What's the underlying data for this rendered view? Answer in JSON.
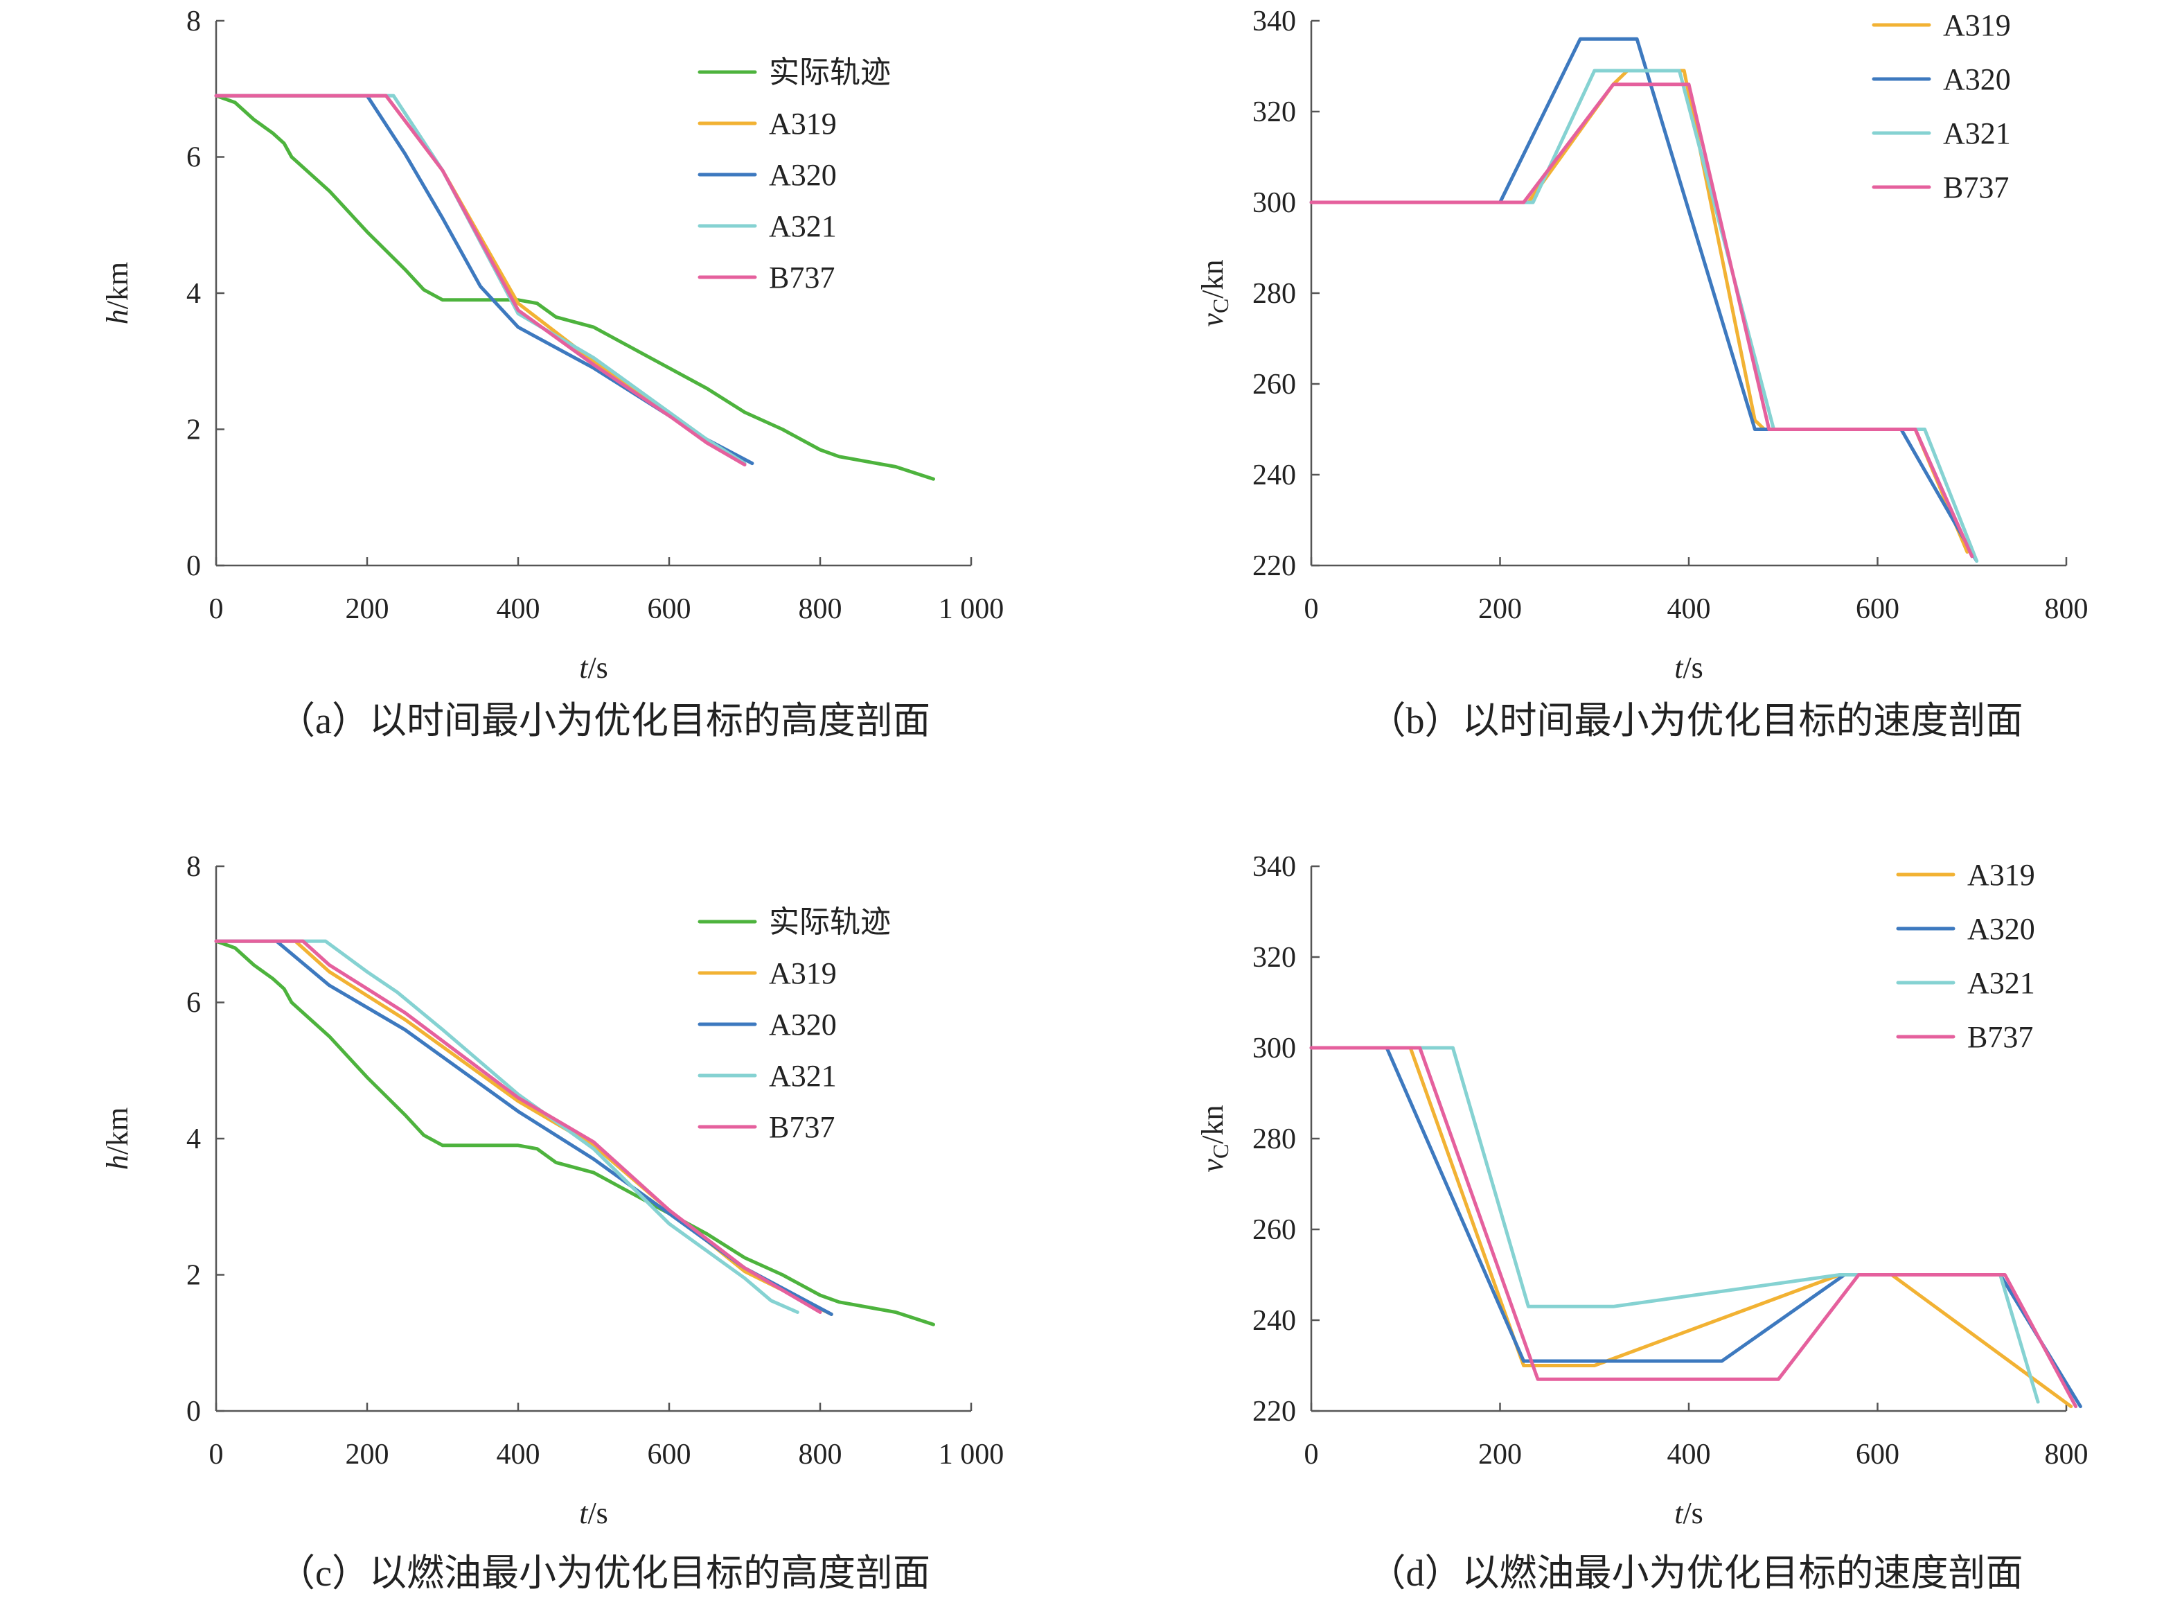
{
  "colors": {
    "实际轨迹": "#4db33d",
    "A319": "#f2b233",
    "A320": "#3d79bf",
    "A321": "#85d2d2",
    "B737": "#e5609d"
  },
  "chart_data": [
    {
      "id": "a",
      "type": "line",
      "caption": "（a）以时间最小为优化目标的高度剖面",
      "xlabel": {
        "var": "t",
        "unit": "/s"
      },
      "ylabel": {
        "var": "h",
        "unit": "/km"
      },
      "xlim": [
        0,
        1000
      ],
      "ylim": [
        0,
        8
      ],
      "xticks": [
        0,
        200,
        400,
        600,
        800,
        1000
      ],
      "xtick_labels": [
        "0",
        "200",
        "400",
        "600",
        "800",
        "1 000"
      ],
      "yticks": [
        0,
        2,
        4,
        6,
        8
      ],
      "ytick_labels": [
        "0",
        "2",
        "4",
        "6",
        "8"
      ],
      "legend": [
        "实际轨迹",
        "A319",
        "A320",
        "A321",
        "B737"
      ],
      "legend_position": "top-right",
      "series": [
        {
          "name": "实际轨迹",
          "points": [
            [
              0,
              6.9
            ],
            [
              25,
              6.8
            ],
            [
              50,
              6.55
            ],
            [
              75,
              6.35
            ],
            [
              90,
              6.2
            ],
            [
              100,
              6.0
            ],
            [
              150,
              5.5
            ],
            [
              200,
              4.9
            ],
            [
              250,
              4.35
            ],
            [
              275,
              4.05
            ],
            [
              300,
              3.9
            ],
            [
              400,
              3.9
            ],
            [
              425,
              3.85
            ],
            [
              450,
              3.65
            ],
            [
              500,
              3.5
            ],
            [
              550,
              3.2
            ],
            [
              600,
              2.9
            ],
            [
              650,
              2.6
            ],
            [
              700,
              2.25
            ],
            [
              750,
              2.0
            ],
            [
              800,
              1.7
            ],
            [
              825,
              1.6
            ],
            [
              850,
              1.55
            ],
            [
              900,
              1.45
            ],
            [
              950,
              1.27
            ]
          ]
        },
        {
          "name": "A319",
          "points": [
            [
              0,
              6.9
            ],
            [
              225,
              6.9
            ],
            [
              300,
              5.8
            ],
            [
              400,
              3.85
            ],
            [
              500,
              3.0
            ],
            [
              600,
              2.2
            ],
            [
              650,
              1.85
            ],
            [
              700,
              1.5
            ]
          ]
        },
        {
          "name": "A320",
          "points": [
            [
              0,
              6.9
            ],
            [
              200,
              6.9
            ],
            [
              250,
              6.05
            ],
            [
              300,
              5.1
            ],
            [
              350,
              4.1
            ],
            [
              400,
              3.5
            ],
            [
              500,
              2.9
            ],
            [
              600,
              2.2
            ],
            [
              650,
              1.85
            ],
            [
              710,
              1.5
            ]
          ]
        },
        {
          "name": "A321",
          "points": [
            [
              0,
              6.9
            ],
            [
              235,
              6.9
            ],
            [
              300,
              5.8
            ],
            [
              400,
              3.7
            ],
            [
              500,
              3.05
            ],
            [
              600,
              2.25
            ],
            [
              650,
              1.85
            ],
            [
              700,
              1.5
            ]
          ]
        },
        {
          "name": "B737",
          "points": [
            [
              0,
              6.9
            ],
            [
              225,
              6.9
            ],
            [
              300,
              5.8
            ],
            [
              400,
              3.75
            ],
            [
              500,
              2.95
            ],
            [
              600,
              2.2
            ],
            [
              650,
              1.8
            ],
            [
              700,
              1.48
            ]
          ]
        }
      ]
    },
    {
      "id": "b",
      "type": "line",
      "caption": "（b）以时间最小为优化目标的速度剖面",
      "xlabel": {
        "var": "t",
        "unit": "/s"
      },
      "ylabel": {
        "var": "v",
        "sub": "C",
        "unit": "/kn"
      },
      "xlim": [
        0,
        800
      ],
      "ylim": [
        220,
        340
      ],
      "xticks": [
        0,
        200,
        400,
        600,
        800
      ],
      "xtick_labels": [
        "0",
        "200",
        "400",
        "600",
        "800"
      ],
      "yticks": [
        220,
        240,
        260,
        280,
        300,
        320,
        340
      ],
      "ytick_labels": [
        "220",
        "240",
        "260",
        "280",
        "300",
        "320",
        "340"
      ],
      "legend": [
        "A319",
        "A320",
        "A321",
        "B737"
      ],
      "legend_position": "top-right",
      "series": [
        {
          "name": "A319",
          "points": [
            [
              0,
              300
            ],
            [
              230,
              300
            ],
            [
              320,
              326
            ],
            [
              335,
              329
            ],
            [
              395,
              329
            ],
            [
              470,
              252
            ],
            [
              480,
              250
            ],
            [
              640,
              250
            ],
            [
              695,
              223
            ]
          ]
        },
        {
          "name": "A320",
          "points": [
            [
              0,
              300
            ],
            [
              200,
              300
            ],
            [
              285,
              336
            ],
            [
              345,
              336
            ],
            [
              470,
              250
            ],
            [
              625,
              250
            ],
            [
              705,
              221
            ]
          ]
        },
        {
          "name": "A321",
          "points": [
            [
              0,
              300
            ],
            [
              235,
              300
            ],
            [
              300,
              329
            ],
            [
              390,
              329
            ],
            [
              490,
              250
            ],
            [
              650,
              250
            ],
            [
              705,
              221
            ]
          ]
        },
        {
          "name": "B737",
          "points": [
            [
              0,
              300
            ],
            [
              225,
              300
            ],
            [
              320,
              326
            ],
            [
              400,
              326
            ],
            [
              485,
              250
            ],
            [
              640,
              250
            ],
            [
              700,
              222
            ]
          ]
        }
      ]
    },
    {
      "id": "c",
      "type": "line",
      "caption": "（c）以燃油最小为优化目标的高度剖面",
      "xlabel": {
        "var": "t",
        "unit": "/s"
      },
      "ylabel": {
        "var": "h",
        "unit": "/km"
      },
      "xlim": [
        0,
        1000
      ],
      "ylim": [
        0,
        8
      ],
      "xticks": [
        0,
        200,
        400,
        600,
        800,
        1000
      ],
      "xtick_labels": [
        "0",
        "200",
        "400",
        "600",
        "800",
        "1 000"
      ],
      "yticks": [
        0,
        2,
        4,
        6,
        8
      ],
      "ytick_labels": [
        "0",
        "2",
        "4",
        "6",
        "8"
      ],
      "legend": [
        "实际轨迹",
        "A319",
        "A320",
        "A321",
        "B737"
      ],
      "legend_position": "top-right",
      "series": [
        {
          "name": "实际轨迹",
          "points": [
            [
              0,
              6.9
            ],
            [
              25,
              6.8
            ],
            [
              50,
              6.55
            ],
            [
              75,
              6.35
            ],
            [
              90,
              6.2
            ],
            [
              100,
              6.0
            ],
            [
              150,
              5.5
            ],
            [
              200,
              4.9
            ],
            [
              250,
              4.35
            ],
            [
              275,
              4.05
            ],
            [
              300,
              3.9
            ],
            [
              400,
              3.9
            ],
            [
              425,
              3.85
            ],
            [
              450,
              3.65
            ],
            [
              500,
              3.5
            ],
            [
              550,
              3.2
            ],
            [
              600,
              2.9
            ],
            [
              650,
              2.6
            ],
            [
              700,
              2.25
            ],
            [
              750,
              2.0
            ],
            [
              800,
              1.7
            ],
            [
              825,
              1.6
            ],
            [
              850,
              1.55
            ],
            [
              900,
              1.45
            ],
            [
              950,
              1.27
            ]
          ]
        },
        {
          "name": "A319",
          "points": [
            [
              0,
              6.9
            ],
            [
              105,
              6.9
            ],
            [
              150,
              6.45
            ],
            [
              200,
              6.1
            ],
            [
              250,
              5.75
            ],
            [
              400,
              4.55
            ],
            [
              500,
              3.9
            ],
            [
              600,
              2.95
            ],
            [
              700,
              2.05
            ],
            [
              815,
              1.42
            ]
          ]
        },
        {
          "name": "A320",
          "points": [
            [
              0,
              6.9
            ],
            [
              80,
              6.9
            ],
            [
              150,
              6.25
            ],
            [
              250,
              5.6
            ],
            [
              400,
              4.4
            ],
            [
              500,
              3.7
            ],
            [
              600,
              2.9
            ],
            [
              700,
              2.1
            ],
            [
              815,
              1.42
            ]
          ]
        },
        {
          "name": "A321",
          "points": [
            [
              0,
              6.9
            ],
            [
              145,
              6.9
            ],
            [
              200,
              6.45
            ],
            [
              240,
              6.15
            ],
            [
              300,
              5.6
            ],
            [
              400,
              4.65
            ],
            [
              500,
              3.85
            ],
            [
              600,
              2.75
            ],
            [
              700,
              1.95
            ],
            [
              735,
              1.62
            ],
            [
              770,
              1.45
            ]
          ]
        },
        {
          "name": "B737",
          "points": [
            [
              0,
              6.9
            ],
            [
              115,
              6.9
            ],
            [
              150,
              6.55
            ],
            [
              200,
              6.2
            ],
            [
              250,
              5.85
            ],
            [
              400,
              4.6
            ],
            [
              500,
              3.95
            ],
            [
              600,
              2.95
            ],
            [
              700,
              2.1
            ],
            [
              800,
              1.45
            ]
          ]
        }
      ]
    },
    {
      "id": "d",
      "type": "line",
      "caption": "（d）以燃油最小为优化目标的速度剖面",
      "xlabel": {
        "var": "t",
        "unit": "/s"
      },
      "ylabel": {
        "var": "v",
        "sub": "C",
        "unit": "/kn"
      },
      "xlim": [
        0,
        800
      ],
      "ylim": [
        220,
        340
      ],
      "xticks": [
        0,
        200,
        400,
        600,
        800
      ],
      "xtick_labels": [
        "0",
        "200",
        "400",
        "600",
        "800"
      ],
      "yticks": [
        220,
        240,
        260,
        280,
        300,
        320,
        340
      ],
      "ytick_labels": [
        "220",
        "240",
        "260",
        "280",
        "300",
        "320",
        "340"
      ],
      "legend": [
        "A319",
        "A320",
        "A321",
        "B737"
      ],
      "legend_position": "top-right",
      "series": [
        {
          "name": "A319",
          "points": [
            [
              0,
              300
            ],
            [
              105,
              300
            ],
            [
              225,
              230
            ],
            [
              300,
              230
            ],
            [
              560,
              250
            ],
            [
              615,
              250
            ],
            [
              805,
              221
            ]
          ]
        },
        {
          "name": "A320",
          "points": [
            [
              0,
              300
            ],
            [
              80,
              300
            ],
            [
              225,
              231
            ],
            [
              435,
              231
            ],
            [
              565,
              250
            ],
            [
              730,
              250
            ],
            [
              815,
              221
            ]
          ]
        },
        {
          "name": "A321",
          "points": [
            [
              0,
              300
            ],
            [
              150,
              300
            ],
            [
              230,
              243
            ],
            [
              320,
              243
            ],
            [
              560,
              250
            ],
            [
              730,
              250
            ],
            [
              770,
              222
            ]
          ]
        },
        {
          "name": "B737",
          "points": [
            [
              0,
              300
            ],
            [
              115,
              300
            ],
            [
              240,
              227
            ],
            [
              495,
              227
            ],
            [
              580,
              250
            ],
            [
              735,
              250
            ],
            [
              810,
              221
            ]
          ]
        }
      ]
    }
  ]
}
